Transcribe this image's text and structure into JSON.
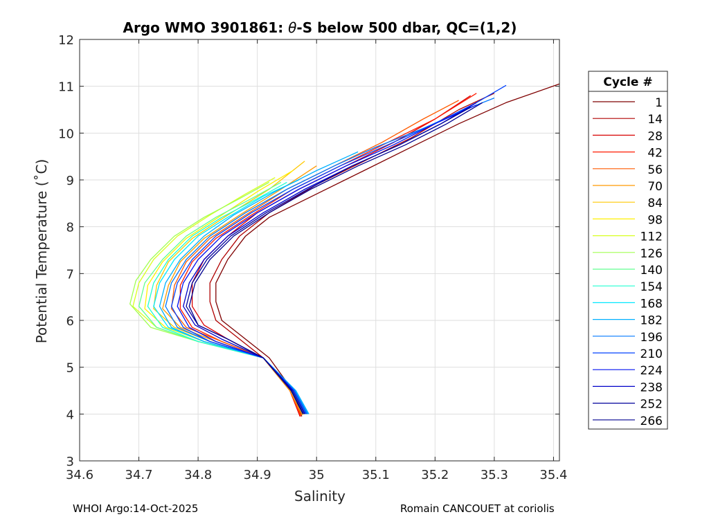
{
  "chart_data": {
    "type": "line",
    "title": "Argo WMO 3901861: θ-S below 500 dbar,  QC=(1,2)",
    "title_prefix": "Argo WMO 3901861: ",
    "title_theta": "θ",
    "title_suffix": "-S below 500 dbar,  QC=(1,2)",
    "xlabel": "Salinity",
    "ylabel": "Potential Temperature (˚C)",
    "xlim": [
      34.6,
      35.41
    ],
    "ylim": [
      3,
      12
    ],
    "xticks": [
      "34.6",
      "34.7",
      "34.8",
      "34.9",
      "35",
      "35.1",
      "35.2",
      "35.3",
      "35.4"
    ],
    "yticks": [
      "3",
      "4",
      "5",
      "6",
      "7",
      "8",
      "9",
      "10",
      "11",
      "12"
    ],
    "grid": true,
    "legend": {
      "title": "Cycle #",
      "placement": "outside-right",
      "entries": [
        {
          "name": "1",
          "color": "#7f0000"
        },
        {
          "name": "14",
          "color": "#b00000"
        },
        {
          "name": "28",
          "color": "#d80000"
        },
        {
          "name": "42",
          "color": "#ff1a00"
        },
        {
          "name": "56",
          "color": "#ff5a00"
        },
        {
          "name": "70",
          "color": "#ff9a00"
        },
        {
          "name": "84",
          "color": "#ffc800"
        },
        {
          "name": "98",
          "color": "#fff000"
        },
        {
          "name": "112",
          "color": "#d8ff20"
        },
        {
          "name": "126",
          "color": "#a0ff50"
        },
        {
          "name": "140",
          "color": "#60ff90"
        },
        {
          "name": "154",
          "color": "#20ffd0"
        },
        {
          "name": "168",
          "color": "#00e8ff"
        },
        {
          "name": "182",
          "color": "#00b0ff"
        },
        {
          "name": "196",
          "color": "#0078ff"
        },
        {
          "name": "210",
          "color": "#0040ff"
        },
        {
          "name": "224",
          "color": "#0010f0"
        },
        {
          "name": "238",
          "color": "#0000c8"
        },
        {
          "name": "252",
          "color": "#00009c"
        },
        {
          "name": "266",
          "color": "#000090"
        }
      ]
    },
    "series": [
      {
        "name": "1",
        "color": "#7f0000",
        "x": [
          34.975,
          34.96,
          34.92,
          34.87,
          34.84,
          34.83,
          34.83,
          34.85,
          34.88,
          34.92,
          35.0,
          35.08,
          35.16,
          35.24,
          35.32,
          35.41
        ],
        "y": [
          3.95,
          4.5,
          5.2,
          5.7,
          6.0,
          6.4,
          6.8,
          7.3,
          7.8,
          8.2,
          8.7,
          9.2,
          9.7,
          10.2,
          10.65,
          11.05
        ]
      },
      {
        "name": "14",
        "color": "#b00000",
        "x": [
          34.973,
          34.955,
          34.91,
          34.86,
          34.83,
          34.82,
          34.82,
          34.84,
          34.87,
          34.92,
          35.0,
          35.08,
          35.16,
          35.24,
          35.3
        ],
        "y": [
          3.95,
          4.5,
          5.2,
          5.7,
          6.0,
          6.4,
          6.8,
          7.3,
          7.8,
          8.3,
          8.9,
          9.4,
          9.9,
          10.5,
          10.85
        ]
      },
      {
        "name": "28",
        "color": "#d80000",
        "x": [
          34.972,
          34.955,
          34.91,
          34.85,
          34.81,
          34.79,
          34.79,
          34.81,
          34.85,
          34.9,
          34.97,
          35.05,
          35.13,
          35.2,
          35.26
        ],
        "y": [
          3.95,
          4.5,
          5.2,
          5.6,
          5.9,
          6.3,
          6.8,
          7.3,
          7.8,
          8.3,
          8.8,
          9.3,
          9.8,
          10.3,
          10.8
        ]
      },
      {
        "name": "42",
        "color": "#ff1a00",
        "x": [
          34.973,
          34.955,
          34.91,
          34.84,
          34.79,
          34.77,
          34.77,
          34.79,
          34.83,
          34.89,
          34.96,
          35.04,
          35.12,
          35.2,
          35.27
        ],
        "y": [
          3.95,
          4.5,
          5.2,
          5.55,
          5.85,
          6.25,
          6.75,
          7.25,
          7.75,
          8.25,
          8.8,
          9.3,
          9.8,
          10.3,
          10.85
        ]
      },
      {
        "name": "56",
        "color": "#ff5a00",
        "x": [
          34.974,
          34.955,
          34.91,
          34.84,
          34.78,
          34.755,
          34.76,
          34.78,
          34.82,
          34.88,
          34.95,
          35.03,
          35.11,
          35.18,
          35.24
        ],
        "y": [
          3.97,
          4.5,
          5.2,
          5.55,
          5.85,
          6.25,
          6.75,
          7.25,
          7.75,
          8.25,
          8.8,
          9.3,
          9.8,
          10.3,
          10.7
        ]
      },
      {
        "name": "70",
        "color": "#ff9a00",
        "x": [
          34.976,
          34.955,
          34.91,
          34.83,
          34.77,
          34.74,
          34.75,
          34.77,
          34.81,
          34.87,
          34.94,
          35.0
        ],
        "y": [
          3.98,
          4.5,
          5.2,
          5.55,
          5.85,
          6.25,
          6.75,
          7.25,
          7.75,
          8.25,
          8.8,
          9.3
        ]
      },
      {
        "name": "84",
        "color": "#ffc800",
        "x": [
          34.978,
          34.957,
          34.91,
          34.82,
          34.76,
          34.725,
          34.73,
          34.75,
          34.79,
          34.85,
          34.92,
          34.98
        ],
        "y": [
          3.99,
          4.5,
          5.2,
          5.55,
          5.85,
          6.25,
          6.75,
          7.25,
          7.75,
          8.25,
          8.8,
          9.4
        ]
      },
      {
        "name": "98",
        "color": "#fff000",
        "x": [
          34.979,
          34.958,
          34.91,
          34.81,
          34.745,
          34.71,
          34.715,
          34.74,
          34.78,
          34.84,
          34.9,
          34.96
        ],
        "y": [
          4.0,
          4.5,
          5.2,
          5.55,
          5.85,
          6.25,
          6.75,
          7.25,
          7.75,
          8.25,
          8.75,
          9.2
        ]
      },
      {
        "name": "112",
        "color": "#d8ff20",
        "x": [
          34.98,
          34.959,
          34.91,
          34.8,
          34.73,
          34.69,
          34.7,
          34.725,
          34.765,
          34.82,
          34.88,
          34.93
        ],
        "y": [
          4.0,
          4.5,
          5.2,
          5.55,
          5.85,
          6.3,
          6.8,
          7.3,
          7.8,
          8.25,
          8.7,
          9.05
        ]
      },
      {
        "name": "126",
        "color": "#a0ff50",
        "x": [
          34.981,
          34.96,
          34.91,
          34.8,
          34.72,
          34.685,
          34.695,
          34.72,
          34.76,
          34.81,
          34.87,
          34.92
        ],
        "y": [
          4.0,
          4.5,
          5.2,
          5.55,
          5.85,
          6.35,
          6.85,
          7.3,
          7.8,
          8.2,
          8.6,
          8.95
        ]
      },
      {
        "name": "140",
        "color": "#60ff90",
        "x": [
          34.982,
          34.962,
          34.91,
          34.8,
          34.73,
          34.7,
          34.71,
          34.74,
          34.78,
          34.83,
          34.89,
          34.94
        ],
        "y": [
          4.0,
          4.5,
          5.2,
          5.55,
          5.85,
          6.3,
          6.8,
          7.3,
          7.8,
          8.2,
          8.6,
          8.95
        ]
      },
      {
        "name": "154",
        "color": "#20ffd0",
        "x": [
          34.984,
          34.963,
          34.91,
          34.8,
          34.74,
          34.715,
          34.725,
          34.75,
          34.79,
          34.84,
          34.9,
          34.95
        ],
        "y": [
          4.0,
          4.5,
          5.2,
          5.55,
          5.85,
          6.3,
          6.8,
          7.3,
          7.8,
          8.2,
          8.6,
          8.95
        ]
      },
      {
        "name": "168",
        "color": "#00e8ff",
        "x": [
          34.986,
          34.964,
          34.91,
          34.81,
          34.75,
          34.725,
          34.735,
          34.76,
          34.8,
          34.85,
          34.91,
          34.97
        ],
        "y": [
          4.0,
          4.5,
          5.2,
          5.55,
          5.85,
          6.3,
          6.8,
          7.3,
          7.8,
          8.2,
          8.65,
          9.0
        ]
      },
      {
        "name": "182",
        "color": "#00b0ff",
        "x": [
          34.987,
          34.965,
          34.91,
          34.81,
          34.755,
          34.735,
          34.745,
          34.77,
          34.81,
          34.86,
          34.93,
          35.0,
          35.07
        ],
        "y": [
          4.0,
          4.5,
          5.2,
          5.55,
          5.85,
          6.3,
          6.8,
          7.3,
          7.8,
          8.25,
          8.75,
          9.2,
          9.6
        ]
      },
      {
        "name": "196",
        "color": "#0078ff",
        "x": [
          34.985,
          34.963,
          34.91,
          34.82,
          34.765,
          34.745,
          34.755,
          34.78,
          34.82,
          34.88,
          34.95,
          35.03,
          35.1,
          35.18,
          35.25,
          35.3
        ],
        "y": [
          4.0,
          4.5,
          5.2,
          5.55,
          5.85,
          6.3,
          6.8,
          7.3,
          7.8,
          8.3,
          8.8,
          9.3,
          9.7,
          10.1,
          10.5,
          10.75
        ]
      },
      {
        "name": "210",
        "color": "#0040ff",
        "x": [
          34.983,
          34.962,
          34.91,
          34.82,
          34.775,
          34.755,
          34.765,
          34.79,
          34.83,
          34.89,
          34.96,
          35.04,
          35.12,
          35.2,
          35.27,
          35.32
        ],
        "y": [
          4.0,
          4.5,
          5.2,
          5.55,
          5.85,
          6.3,
          6.8,
          7.3,
          7.8,
          8.3,
          8.8,
          9.3,
          9.75,
          10.2,
          10.65,
          11.02
        ]
      },
      {
        "name": "224",
        "color": "#0010f0",
        "x": [
          34.981,
          34.96,
          34.91,
          34.83,
          34.785,
          34.765,
          34.775,
          34.8,
          34.84,
          34.9,
          34.97,
          35.05,
          35.13,
          35.2,
          35.27
        ],
        "y": [
          4.0,
          4.5,
          5.2,
          5.55,
          5.85,
          6.3,
          6.8,
          7.3,
          7.8,
          8.3,
          8.8,
          9.3,
          9.75,
          10.2,
          10.6
        ]
      },
      {
        "name": "238",
        "color": "#0000c8",
        "x": [
          34.98,
          34.96,
          34.91,
          34.84,
          34.795,
          34.775,
          34.785,
          34.81,
          34.85,
          34.91,
          34.98,
          35.06,
          35.14,
          35.21,
          35.27
        ],
        "y": [
          4.0,
          4.5,
          5.2,
          5.6,
          5.9,
          6.3,
          6.8,
          7.3,
          7.8,
          8.3,
          8.8,
          9.3,
          9.75,
          10.2,
          10.65
        ]
      },
      {
        "name": "252",
        "color": "#00009c",
        "x": [
          34.978,
          34.958,
          34.91,
          34.85,
          34.8,
          34.78,
          34.79,
          34.815,
          34.855,
          34.915,
          34.985,
          35.06,
          35.14,
          35.21,
          35.26
        ],
        "y": [
          4.0,
          4.5,
          5.2,
          5.6,
          5.9,
          6.3,
          6.8,
          7.3,
          7.8,
          8.3,
          8.8,
          9.3,
          9.75,
          10.2,
          10.55
        ]
      },
      {
        "name": "266",
        "color": "#000090",
        "x": [
          34.977,
          34.957,
          34.91,
          34.85,
          34.8,
          34.785,
          34.795,
          34.82,
          34.86,
          34.92,
          34.99,
          35.07,
          35.15,
          35.22,
          35.28
        ],
        "y": [
          4.0,
          4.5,
          5.2,
          5.6,
          5.9,
          6.3,
          6.8,
          7.3,
          7.8,
          8.3,
          8.8,
          9.3,
          9.75,
          10.2,
          10.65
        ]
      }
    ]
  },
  "footer": {
    "left": "WHOI Argo:14-Oct-2025",
    "right": "Romain CANCOUET at coriolis"
  }
}
